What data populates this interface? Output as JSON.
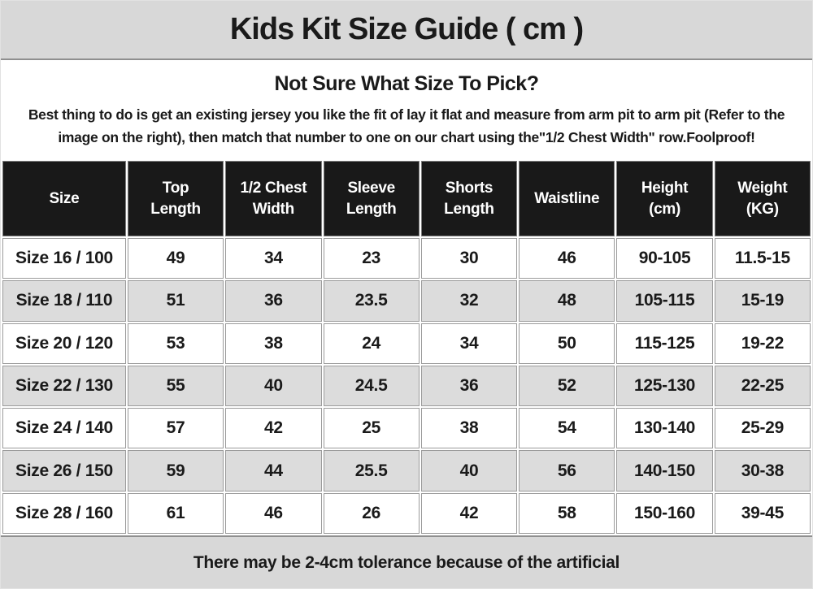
{
  "header": {
    "title": "Kids Kit Size Guide ( cm )"
  },
  "intro": {
    "heading": "Not Sure What Size To Pick?",
    "body": "Best thing to do is get an existing jersey you like the fit of lay it flat and measure from arm pit to arm pit (Refer to the image on the right), then match that number to one on our chart using the\"1/2 Chest Width\" row.Foolproof!"
  },
  "size_table": {
    "columns": [
      "Size",
      "Top\nLength",
      "1/2 Chest\nWidth",
      "Sleeve\nLength",
      "Shorts\nLength",
      "Waistline",
      "Height\n(cm)",
      "Weight\n(KG)"
    ],
    "rows": [
      [
        "Size 16 / 100",
        "49",
        "34",
        "23",
        "30",
        "46",
        "90-105",
        "11.5-15"
      ],
      [
        "Size 18 / 110",
        "51",
        "36",
        "23.5",
        "32",
        "48",
        "105-115",
        "15-19"
      ],
      [
        "Size 20 / 120",
        "53",
        "38",
        "24",
        "34",
        "50",
        "115-125",
        "19-22"
      ],
      [
        "Size 22 / 130",
        "55",
        "40",
        "24.5",
        "36",
        "52",
        "125-130",
        "22-25"
      ],
      [
        "Size 24 / 140",
        "57",
        "42",
        "25",
        "38",
        "54",
        "130-140",
        "25-29"
      ],
      [
        "Size 26 / 150",
        "59",
        "44",
        "25.5",
        "40",
        "56",
        "140-150",
        "30-38"
      ],
      [
        "Size 28 / 160",
        "61",
        "46",
        "26",
        "42",
        "58",
        "150-160",
        "39-45"
      ]
    ]
  },
  "footer": {
    "note": "There may be 2-4cm tolerance because of the artificial"
  },
  "colors": {
    "band_gray": "#d8d8d8",
    "row_stripe_gray": "#dcdcdc",
    "header_cell_black": "#191919",
    "cell_border_gray": "#9b9b9b",
    "divider_gray": "#8f8f8f",
    "text_black": "#1a1a1a",
    "header_text_white": "#ffffff"
  }
}
